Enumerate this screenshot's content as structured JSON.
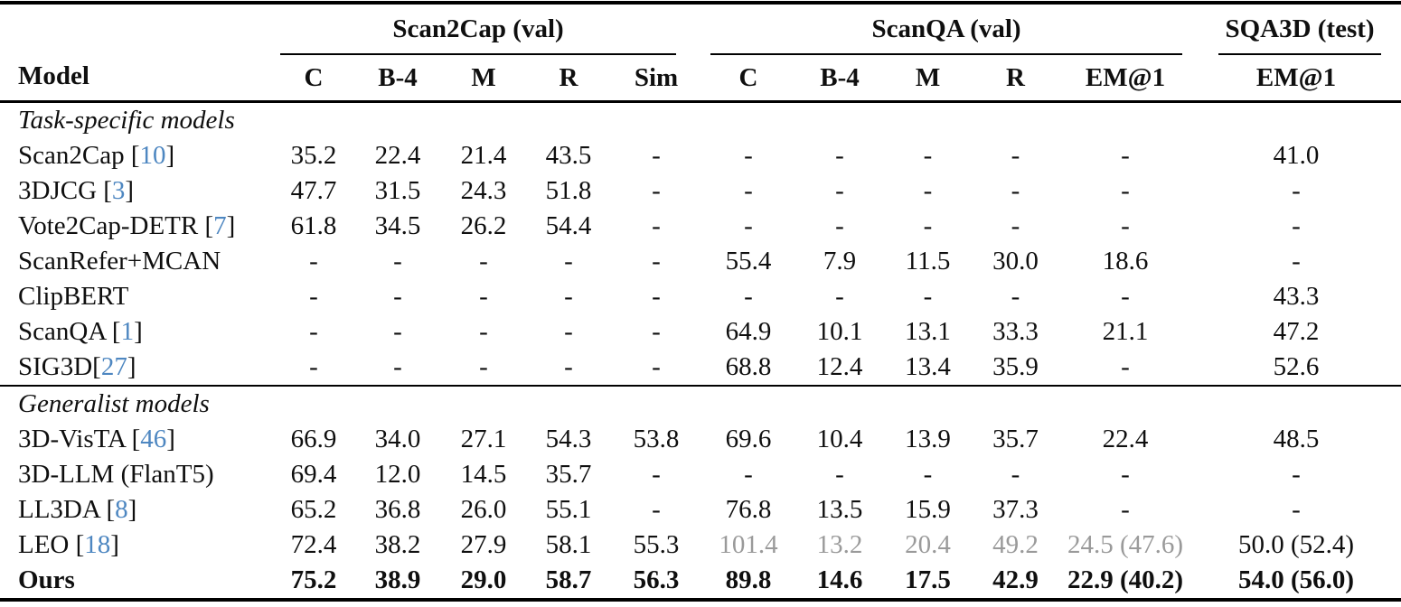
{
  "colors": {
    "citation_blue": "#4e87c1",
    "muted_gray": "#9a9a9a",
    "text_black": "#0f0f0f",
    "rule_black": "#000000"
  },
  "table": {
    "model_header": "Model",
    "groups": [
      {
        "label": "Scan2Cap (val)",
        "columns": [
          "C",
          "B-4",
          "M",
          "R",
          "Sim"
        ]
      },
      {
        "label": "ScanQA (val)",
        "columns": [
          "C",
          "B-4",
          "M",
          "R",
          "EM@1"
        ]
      },
      {
        "label": "SQA3D (test)",
        "columns": [
          "EM@1"
        ]
      }
    ],
    "sections": [
      {
        "title": "Task-specific models",
        "rows": [
          {
            "model": {
              "pre": "Scan2Cap [",
              "cite": "10",
              "post": "]"
            },
            "values": [
              "35.2",
              "22.4",
              "21.4",
              "43.5",
              "-",
              "-",
              "-",
              "-",
              "-",
              "-",
              "41.0"
            ]
          },
          {
            "model": {
              "pre": "3DJCG [",
              "cite": "3",
              "post": "]"
            },
            "values": [
              "47.7",
              "31.5",
              "24.3",
              "51.8",
              "-",
              "-",
              "-",
              "-",
              "-",
              "-",
              "-"
            ]
          },
          {
            "model": {
              "pre": "Vote2Cap-DETR [",
              "cite": "7",
              "post": "]"
            },
            "values": [
              "61.8",
              "34.5",
              "26.2",
              "54.4",
              "-",
              "-",
              "-",
              "-",
              "-",
              "-",
              "-"
            ]
          },
          {
            "model": {
              "pre": "ScanRefer+MCAN",
              "cite": null,
              "post": null
            },
            "values": [
              "-",
              "-",
              "-",
              "-",
              "-",
              "55.4",
              "7.9",
              "11.5",
              "30.0",
              "18.6",
              "-"
            ]
          },
          {
            "model": {
              "pre": "ClipBERT",
              "cite": null,
              "post": null
            },
            "values": [
              "-",
              "-",
              "-",
              "-",
              "-",
              "-",
              "-",
              "-",
              "-",
              "-",
              "43.3"
            ]
          },
          {
            "model": {
              "pre": "ScanQA [",
              "cite": "1",
              "post": "]"
            },
            "values": [
              "-",
              "-",
              "-",
              "-",
              "-",
              "64.9",
              "10.1",
              "13.1",
              "33.3",
              "21.1",
              "47.2"
            ]
          },
          {
            "model": {
              "pre": "SIG3D[",
              "cite": "27",
              "post": "]"
            },
            "values": [
              "-",
              "-",
              "-",
              "-",
              "-",
              "68.8",
              "12.4",
              "13.4",
              "35.9",
              "-",
              "52.6"
            ]
          }
        ]
      },
      {
        "title": "Generalist models",
        "rows": [
          {
            "model": {
              "pre": "3D-VisTA [",
              "cite": "46",
              "post": "]"
            },
            "values": [
              "66.9",
              "34.0",
              "27.1",
              "54.3",
              "53.8",
              "69.6",
              "10.4",
              "13.9",
              "35.7",
              "22.4",
              "48.5"
            ]
          },
          {
            "model": {
              "pre": "3D-LLM (FlanT5)",
              "cite": null,
              "post": null
            },
            "values": [
              "69.4",
              "12.0",
              "14.5",
              "35.7",
              "-",
              "-",
              "-",
              "-",
              "-",
              "-",
              "-"
            ]
          },
          {
            "model": {
              "pre": "LL3DA [",
              "cite": "8",
              "post": "]"
            },
            "values": [
              "65.2",
              "36.8",
              "26.0",
              "55.1",
              "-",
              "76.8",
              "13.5",
              "15.9",
              "37.3",
              "-",
              "-"
            ]
          },
          {
            "model": {
              "pre": "LEO [",
              "cite": "18",
              "post": "]"
            },
            "values": [
              "72.4",
              "38.2",
              "27.9",
              "58.1",
              "55.3",
              "101.4",
              "13.2",
              "20.4",
              "49.2",
              "24.5 (47.6)",
              "50.0 (52.4)"
            ],
            "gray_cols": [
              5,
              6,
              7,
              8,
              9
            ]
          },
          {
            "model": {
              "pre": "Ours",
              "cite": null,
              "post": null
            },
            "bold": true,
            "values": [
              "75.2",
              "38.9",
              "29.0",
              "58.7",
              "56.3",
              "89.8",
              "14.6",
              "17.5",
              "42.9",
              "22.9 (40.2)",
              "54.0 (56.0)"
            ]
          }
        ]
      }
    ]
  }
}
